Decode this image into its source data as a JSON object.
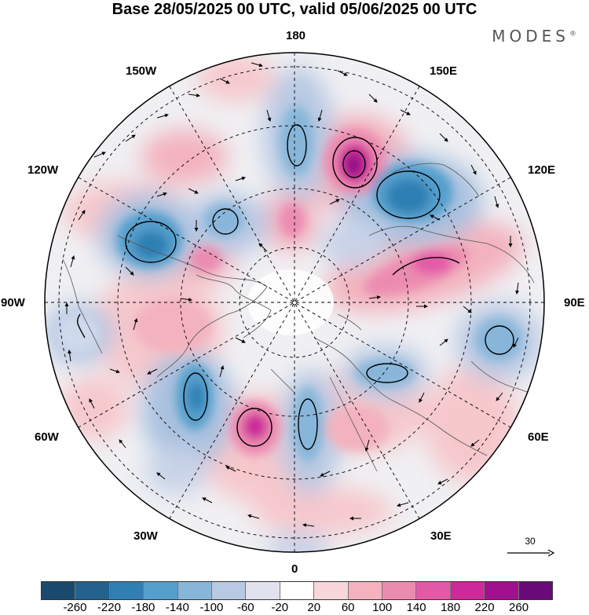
{
  "title": "Base 28/05/2025 00 UTC, valid 05/06/2025 00 UTC",
  "brand": {
    "name": "MODES",
    "mark": "®"
  },
  "longitude_labels": {
    "top": "180",
    "bottom": "0",
    "left": "90W",
    "right": "90E",
    "upper_left_1": "150W",
    "upper_left_2": "120W",
    "upper_right_1": "150E",
    "upper_right_2": "120E",
    "lower_left_1": "60W",
    "lower_left_2": "30W",
    "lower_right_1": "60E",
    "lower_right_2": "30E"
  },
  "reference_vector": {
    "label": "30"
  },
  "colorbar": {
    "ticks": [
      "-260",
      "-220",
      "-180",
      "-140",
      "-100",
      "-60",
      "-20",
      "20",
      "60",
      "100",
      "140",
      "180",
      "220",
      "260"
    ],
    "colors": [
      "#1a4a6e",
      "#24628e",
      "#2f7fb3",
      "#549fcc",
      "#87b6d9",
      "#b8c9e3",
      "#e2e2ef",
      "#ffffff",
      "#f9d6d7",
      "#f3b2be",
      "#ec8bb0",
      "#e25aa7",
      "#cc2a98",
      "#a0118f",
      "#6a0a79"
    ]
  },
  "map_features": {
    "projection": "north polar stereographic",
    "anomaly_cells": [
      {
        "sign": "negative",
        "level": 3,
        "near": "180"
      },
      {
        "sign": "positive",
        "level": 5,
        "near": "150E"
      },
      {
        "sign": "negative",
        "level": 4,
        "near": "120E"
      },
      {
        "sign": "positive",
        "level": 3,
        "near": "90E-120E"
      },
      {
        "sign": "negative",
        "level": 3,
        "near": "90E"
      },
      {
        "sign": "negative",
        "level": 4,
        "near": "120W"
      },
      {
        "sign": "negative",
        "level": 4,
        "near": "60W"
      },
      {
        "sign": "positive",
        "level": 5,
        "near": "0-30W"
      },
      {
        "sign": "negative",
        "level": 3,
        "near": "0-30E"
      }
    ]
  }
}
